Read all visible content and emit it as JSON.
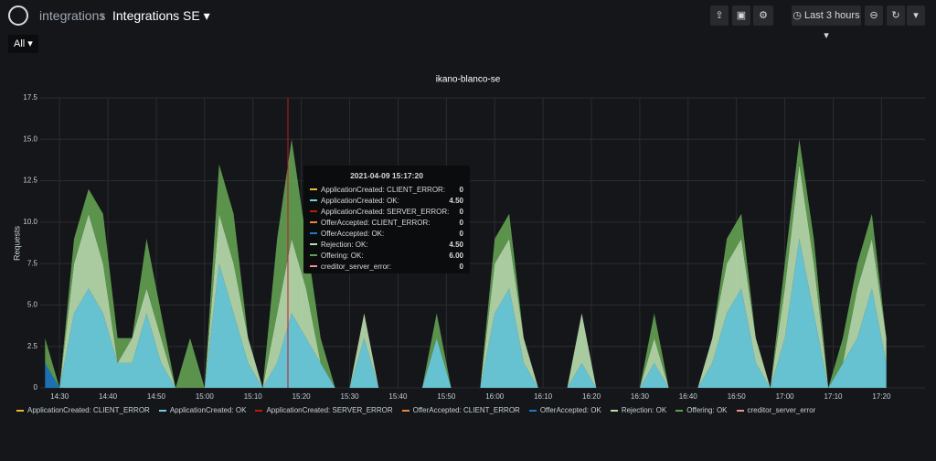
{
  "header": {
    "breadcrumb": "integrations",
    "title": "Integrations SE",
    "time_range": "Last 3 hours",
    "variable": "All"
  },
  "chart_data": {
    "type": "stacked-area",
    "title": "ikano-blanco-se",
    "y_label": "Requests",
    "x": [
      "14:27",
      "14:30",
      "14:33",
      "14:36",
      "14:39",
      "14:42",
      "14:45",
      "14:48",
      "14:51",
      "14:54",
      "14:57",
      "15:00",
      "15:03",
      "15:06",
      "15:09",
      "15:12",
      "15:15",
      "15:18",
      "15:21",
      "15:24",
      "15:27",
      "15:30",
      "15:33",
      "15:36",
      "15:39",
      "15:42",
      "15:45",
      "15:48",
      "15:51",
      "15:54",
      "15:57",
      "16:00",
      "16:03",
      "16:06",
      "16:09",
      "16:12",
      "16:15",
      "16:18",
      "16:21",
      "16:24",
      "16:27",
      "16:30",
      "16:33",
      "16:36",
      "16:39",
      "16:42",
      "16:45",
      "16:48",
      "16:51",
      "16:54",
      "16:57",
      "17:00",
      "17:03",
      "17:06",
      "17:09",
      "17:12",
      "17:15",
      "17:18",
      "17:21"
    ],
    "xlim": [
      "14:26",
      "17:29"
    ],
    "xticks": [
      "14:30",
      "14:40",
      "14:50",
      "15:00",
      "15:10",
      "15:20",
      "15:30",
      "15:40",
      "15:50",
      "16:00",
      "16:10",
      "16:20",
      "16:30",
      "16:40",
      "16:50",
      "17:00",
      "17:10",
      "17:20"
    ],
    "ylim": [
      0,
      17.5
    ],
    "yticks": [
      0,
      2.5,
      {
        "value": 5,
        "label": "5.0"
      },
      7.5,
      {
        "value": 10,
        "label": "10.0"
      },
      12.5,
      {
        "value": 15,
        "label": "15.0"
      },
      17.5
    ],
    "grid": true,
    "stacked": true,
    "series": [
      {
        "name": "ApplicationCreated: CLIENT_ERROR",
        "color": "#eab839",
        "values": [
          0,
          0,
          0,
          0,
          0,
          0,
          0,
          0,
          0,
          0,
          0,
          0,
          0,
          0,
          0,
          0,
          0,
          0,
          0,
          0,
          0,
          0,
          0,
          0,
          0,
          0,
          0,
          0,
          0,
          0,
          0,
          0,
          0,
          0,
          0,
          0,
          0,
          0,
          0,
          0,
          0,
          0,
          0,
          0,
          0,
          0,
          0,
          0,
          0,
          0,
          0,
          0,
          0,
          0,
          0,
          0,
          0,
          0,
          0
        ]
      },
      {
        "name": "ApplicationCreated: OK",
        "color": "#6ed0e0",
        "values": [
          0,
          0,
          4.5,
          6,
          4.5,
          1.5,
          1.5,
          4.5,
          1.5,
          0,
          0,
          0,
          7.5,
          4.5,
          1.5,
          0,
          1.5,
          4.5,
          3,
          1.5,
          0,
          0,
          3,
          0,
          0,
          0,
          0,
          3,
          0,
          0,
          0,
          4.5,
          6,
          1.5,
          0,
          0,
          0,
          1.5,
          0,
          0,
          0,
          0,
          1.5,
          0,
          0,
          0,
          1.5,
          4.5,
          6,
          1.5,
          0,
          3,
          9,
          4.5,
          0,
          1.5,
          3,
          6,
          1.5
        ]
      },
      {
        "name": "ApplicationCreated: SERVER_ERROR",
        "color": "#bf1b00",
        "values": [
          0,
          0,
          0,
          0,
          0,
          0,
          0,
          0,
          0,
          0,
          0,
          0,
          0,
          0,
          0,
          0,
          0,
          0,
          0,
          0,
          0,
          0,
          0,
          0,
          0,
          0,
          0,
          0,
          0,
          0,
          0,
          0,
          0,
          0,
          0,
          0,
          0,
          0,
          0,
          0,
          0,
          0,
          0,
          0,
          0,
          0,
          0,
          0,
          0,
          0,
          0,
          0,
          0,
          0,
          0,
          0,
          0,
          0,
          0
        ]
      },
      {
        "name": "OfferAccepted: CLIENT_ERROR",
        "color": "#ef843c",
        "values": [
          0,
          0,
          0,
          0,
          0,
          0,
          0,
          0,
          0,
          0,
          0,
          0,
          0,
          0,
          0,
          0,
          0,
          0,
          0,
          0,
          0,
          0,
          0,
          0,
          0,
          0,
          0,
          0,
          0,
          0,
          0,
          0,
          0,
          0,
          0,
          0,
          0,
          0,
          0,
          0,
          0,
          0,
          0,
          0,
          0,
          0,
          0,
          0,
          0,
          0,
          0,
          0,
          0,
          0,
          0,
          0,
          0,
          0,
          0
        ]
      },
      {
        "name": "OfferAccepted: OK",
        "color": "#1f78c1",
        "values": [
          1.5,
          0,
          0,
          0,
          0,
          0,
          0,
          0,
          0,
          0,
          0,
          0,
          0,
          0,
          0,
          0,
          0,
          0,
          0,
          0,
          0,
          0,
          0,
          0,
          0,
          0,
          0,
          0,
          0,
          0,
          0,
          0,
          0,
          0,
          0,
          0,
          0,
          0,
          0,
          0,
          0,
          0,
          0,
          0,
          0,
          0,
          0,
          0,
          0,
          0,
          0,
          0,
          0,
          0,
          0,
          0,
          0,
          0,
          0
        ]
      },
      {
        "name": "Rejection: OK",
        "color": "#b7dbab",
        "values": [
          0,
          0,
          3,
          4.5,
          3,
          0,
          1.5,
          1.5,
          1.5,
          0,
          0,
          0,
          3,
          3,
          1.5,
          0,
          3,
          4.5,
          3,
          0,
          0,
          0,
          1.5,
          0,
          0,
          0,
          0,
          0,
          0,
          0,
          0,
          3,
          3,
          1.5,
          0,
          0,
          0,
          3,
          0,
          0,
          0,
          0,
          1.5,
          0,
          0,
          0,
          1.5,
          3,
          3,
          1.5,
          0,
          3,
          4.5,
          3,
          0,
          0,
          3,
          3,
          1.5
        ]
      },
      {
        "name": "Offering: OK",
        "color": "#629e51",
        "values": [
          1.5,
          0,
          1.5,
          1.5,
          3,
          1.5,
          0,
          3,
          1.5,
          0,
          3,
          0,
          3,
          3,
          0,
          0,
          4.5,
          6,
          3,
          1.5,
          0,
          0,
          0,
          0,
          0,
          0,
          0,
          1.5,
          0,
          0,
          0,
          1.5,
          1.5,
          0,
          0,
          0,
          0,
          0,
          0,
          0,
          0,
          0,
          1.5,
          0,
          0,
          0,
          0,
          1.5,
          1.5,
          0,
          0,
          1.5,
          1.5,
          1.5,
          0,
          1.5,
          1.5,
          1.5,
          0
        ]
      },
      {
        "name": "creditor_server_error",
        "color": "#f29191",
        "values": [
          0,
          0,
          0,
          0,
          0,
          0,
          0,
          0,
          0,
          0,
          0,
          0,
          0,
          0,
          0,
          0,
          0,
          0,
          0,
          0,
          0,
          0,
          0,
          0,
          0,
          0,
          0,
          0,
          0,
          0,
          0,
          0,
          0,
          0,
          0,
          0,
          0,
          0,
          0,
          0,
          0,
          0,
          0,
          0,
          0,
          0,
          0,
          0,
          0,
          0,
          0,
          0,
          0,
          0,
          0,
          0,
          0,
          0,
          0
        ]
      }
    ],
    "tooltip": {
      "time": "2021-04-09 15:17:20",
      "rows": [
        {
          "name": "ApplicationCreated: CLIENT_ERROR:",
          "value": "0"
        },
        {
          "name": "ApplicationCreated: OK:",
          "value": "4.50"
        },
        {
          "name": "ApplicationCreated: SERVER_ERROR:",
          "value": "0"
        },
        {
          "name": "OfferAccepted: CLIENT_ERROR:",
          "value": "0"
        },
        {
          "name": "OfferAccepted: OK:",
          "value": "0"
        },
        {
          "name": "Rejection: OK:",
          "value": "4.50"
        },
        {
          "name": "Offering: OK:",
          "value": "6.00"
        },
        {
          "name": "creditor_server_error:",
          "value": "0"
        }
      ]
    }
  }
}
